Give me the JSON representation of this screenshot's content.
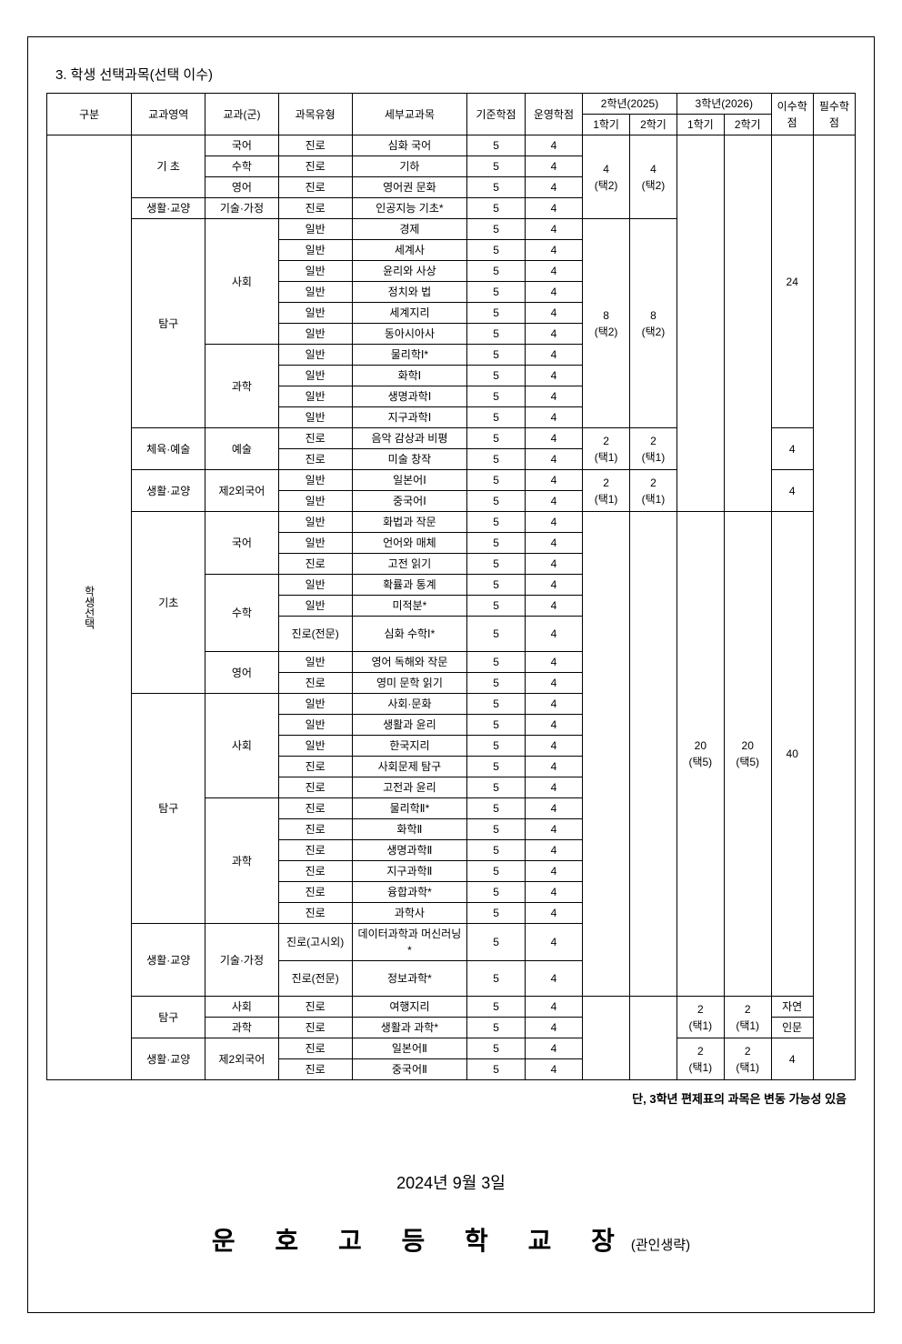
{
  "section_title": "3. 학생 선택과목(선택 이수)",
  "header": {
    "gu": "구분",
    "area": "교과영역",
    "gun": "교과(군)",
    "type": "과목유형",
    "subj": "세부교과목",
    "base_credit": "기준학점",
    "op_credit": "운영학점",
    "year2": "2학년(2025)",
    "year3": "3학년(2026)",
    "sem1": "1학기",
    "sem2": "2학기",
    "isu": "이수학점",
    "req": "필수학점"
  },
  "side_label": "학생선택",
  "rows": [
    {
      "area": "기 초",
      "gun": "국어",
      "type": "진로",
      "subj": "심화 국어",
      "bc": "5",
      "oc": "4"
    },
    {
      "gun": "수학",
      "type": "진로",
      "subj": "기하",
      "bc": "5",
      "oc": "4"
    },
    {
      "gun": "영어",
      "type": "진로",
      "subj": "영어권 문화",
      "bc": "5",
      "oc": "4"
    },
    {
      "area": "생활·교양",
      "gun": "기술·가정",
      "type": "진로",
      "subj": "인공지능 기초*",
      "bc": "5",
      "oc": "4"
    },
    {
      "type": "일반",
      "subj": "경제",
      "bc": "5",
      "oc": "4"
    },
    {
      "type": "일반",
      "subj": "세계사",
      "bc": "5",
      "oc": "4"
    },
    {
      "type": "일반",
      "subj": "윤리와 사상",
      "bc": "5",
      "oc": "4"
    },
    {
      "type": "일반",
      "subj": "정치와 법",
      "bc": "5",
      "oc": "4"
    },
    {
      "type": "일반",
      "subj": "세계지리",
      "bc": "5",
      "oc": "4"
    },
    {
      "type": "일반",
      "subj": "동아시아사",
      "bc": "5",
      "oc": "4"
    },
    {
      "type": "일반",
      "subj": "물리학Ⅰ*",
      "bc": "5",
      "oc": "4"
    },
    {
      "type": "일반",
      "subj": "화학Ⅰ",
      "bc": "5",
      "oc": "4"
    },
    {
      "type": "일반",
      "subj": "생명과학Ⅰ",
      "bc": "5",
      "oc": "4"
    },
    {
      "type": "일반",
      "subj": "지구과학Ⅰ",
      "bc": "5",
      "oc": "4"
    },
    {
      "type": "진로",
      "subj": "음악 감상과 비평",
      "bc": "5",
      "oc": "4"
    },
    {
      "type": "진로",
      "subj": "미술 창작",
      "bc": "5",
      "oc": "4"
    },
    {
      "type": "일반",
      "subj": "일본어Ⅰ",
      "bc": "5",
      "oc": "4"
    },
    {
      "type": "일반",
      "subj": "중국어Ⅰ",
      "bc": "5",
      "oc": "4"
    },
    {
      "type": "일반",
      "subj": "화법과 작문",
      "bc": "5",
      "oc": "4"
    },
    {
      "type": "일반",
      "subj": "언어와 매체",
      "bc": "5",
      "oc": "4"
    },
    {
      "type": "진로",
      "subj": "고전 읽기",
      "bc": "5",
      "oc": "4"
    },
    {
      "type": "일반",
      "subj": "확률과 통계",
      "bc": "5",
      "oc": "4"
    },
    {
      "type": "일반",
      "subj": "미적분*",
      "bc": "5",
      "oc": "4"
    },
    {
      "type": "진로(전문)",
      "subj": "심화 수학Ⅰ*",
      "bc": "5",
      "oc": "4"
    },
    {
      "type": "일반",
      "subj": "영어 독해와 작문",
      "bc": "5",
      "oc": "4"
    },
    {
      "type": "진로",
      "subj": "영미 문학 읽기",
      "bc": "5",
      "oc": "4"
    },
    {
      "type": "일반",
      "subj": "사회·문화",
      "bc": "5",
      "oc": "4"
    },
    {
      "type": "일반",
      "subj": "생활과 윤리",
      "bc": "5",
      "oc": "4"
    },
    {
      "type": "일반",
      "subj": "한국지리",
      "bc": "5",
      "oc": "4"
    },
    {
      "type": "진로",
      "subj": "사회문제 탐구",
      "bc": "5",
      "oc": "4"
    },
    {
      "type": "진로",
      "subj": "고전과 윤리",
      "bc": "5",
      "oc": "4"
    },
    {
      "type": "진로",
      "subj": "물리학Ⅱ*",
      "bc": "5",
      "oc": "4"
    },
    {
      "type": "진로",
      "subj": "화학Ⅱ",
      "bc": "5",
      "oc": "4"
    },
    {
      "type": "진로",
      "subj": "생명과학Ⅱ",
      "bc": "5",
      "oc": "4"
    },
    {
      "type": "진로",
      "subj": "지구과학Ⅱ",
      "bc": "5",
      "oc": "4"
    },
    {
      "type": "진로",
      "subj": "융합과학*",
      "bc": "5",
      "oc": "4"
    },
    {
      "type": "진로",
      "subj": "과학사",
      "bc": "5",
      "oc": "4"
    },
    {
      "type": "진로(고시외)",
      "subj": "데이터과학과 머신러닝*",
      "bc": "5",
      "oc": "4"
    },
    {
      "type": "진로(전문)",
      "subj": "정보과학*",
      "bc": "5",
      "oc": "4"
    },
    {
      "type": "진로",
      "subj": "여행지리",
      "bc": "5",
      "oc": "4"
    },
    {
      "type": "진로",
      "subj": "생활과 과학*",
      "bc": "5",
      "oc": "4"
    },
    {
      "type": "진로",
      "subj": "일본어Ⅱ",
      "bc": "5",
      "oc": "4"
    },
    {
      "type": "진로",
      "subj": "중국어Ⅱ",
      "bc": "5",
      "oc": "4"
    }
  ],
  "group_labels": {
    "area_tamgu": "탐구",
    "gun_sahwe": "사회",
    "gun_gwahak": "과학",
    "area_cheyuk": "체육·예술",
    "gun_yesul": "예술",
    "area_saenghwal": "생활·교양",
    "gun_je2": "제2외국어",
    "area_gicho": "기초",
    "gun_gugeo": "국어",
    "gun_suhak": "수학",
    "gun_yeongeo": "영어",
    "gun_gisul": "기술·가정"
  },
  "merged": {
    "y2_basic_1": "4",
    "y2_basic_2": "4",
    "y2_basic_t1": "(택2)",
    "y2_basic_t2": "(택2)",
    "y2_tamgu_1": "8",
    "y2_tamgu_2": "8",
    "y2_tamgu_t1": "(택2)",
    "y2_tamgu_t2": "(택2)",
    "y2_art_1": "2",
    "y2_art_2": "2",
    "y2_art_t1": "(택1)",
    "y2_art_t2": "(택1)",
    "y2_lang_1": "2",
    "y2_lang_2": "2",
    "y2_lang_t1": "(택1)",
    "y2_lang_t2": "(택1)",
    "y3_big_1": "20",
    "y3_big_2": "20",
    "y3_big_t1": "(택5)",
    "y3_big_t2": "(택5)",
    "y3_travel_1": "2",
    "y3_travel_2": "2",
    "y3_travel_t1": "(택1)",
    "y3_travel_t2": "(택1)",
    "y3_lang_1": "2",
    "y3_lang_2": "2",
    "y3_lang_t1": "(택1)",
    "y3_lang_t2": "(택1)",
    "isu_24": "24",
    "isu_4a": "4",
    "isu_4b": "4",
    "isu_40": "40",
    "isu_nat": "자연",
    "isu_hum": "인문",
    "isu_4c": "4"
  },
  "footnote": "단, 3학년 편제표의 과목은 변동 가능성 있음",
  "date": "2024년  9월  3일",
  "school": "운 호 고 등 학 교 장",
  "seal": "(관인생략)"
}
